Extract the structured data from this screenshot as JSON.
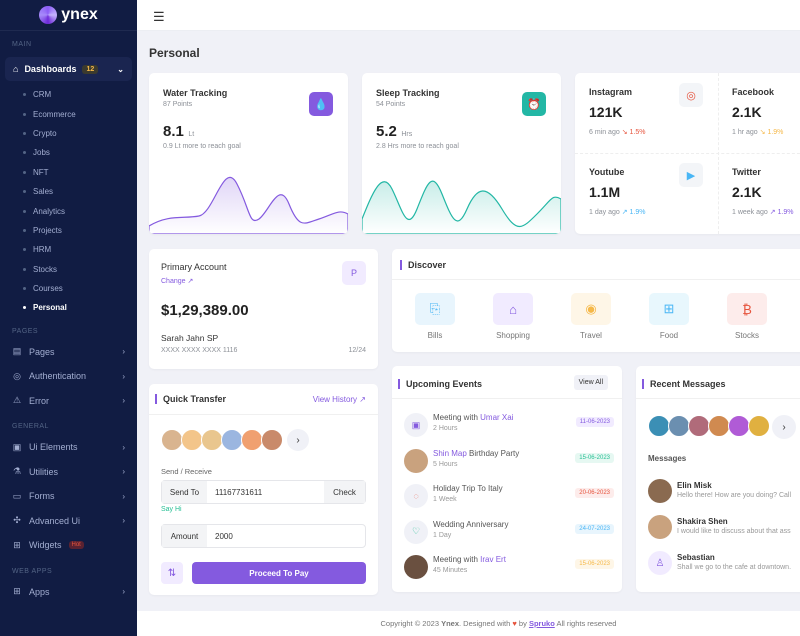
{
  "brand": "ynex",
  "sidebar": {
    "main_label": "MAIN",
    "dashboards": "Dashboards",
    "dash_badge": "12",
    "subitems": [
      "CRM",
      "Ecommerce",
      "Crypto",
      "Jobs",
      "NFT",
      "Sales",
      "Analytics",
      "Projects",
      "HRM",
      "Stocks",
      "Courses",
      "Personal"
    ],
    "pages_label": "PAGES",
    "pages": [
      "Pages",
      "Authentication",
      "Error"
    ],
    "general_label": "GENERAL",
    "general": [
      "Ui Elements",
      "Utilities",
      "Forms",
      "Advanced Ui",
      "Widgets"
    ],
    "hot": "Hot",
    "webapps_label": "WEB APPS",
    "apps": "Apps"
  },
  "page_title": "Personal",
  "water": {
    "title": "Water Tracking",
    "points": "87 Points",
    "value": "8.1",
    "unit": "Lt",
    "note": "0.9 Lt more to reach goal",
    "color": "#845adf"
  },
  "sleep": {
    "title": "Sleep Tracking",
    "points": "54 Points",
    "value": "5.2",
    "unit": "Hrs",
    "note": "2.8 Hrs more to reach goal",
    "color": "#23b7a5"
  },
  "social": [
    {
      "name": "Instagram",
      "value": "121K",
      "time": "6 min ago",
      "change": "↘ 1.5%",
      "color": "#e6533c"
    },
    {
      "name": "Facebook",
      "value": "2.1K",
      "time": "1 hr ago",
      "change": "↘ 1.9%",
      "color": "#f5b849"
    },
    {
      "name": "Youtube",
      "value": "1.1M",
      "time": "1 day ago",
      "change": "↗ 1.9%",
      "color": "#49b6f5"
    },
    {
      "name": "Twitter",
      "value": "2.1K",
      "time": "1 week ago",
      "change": "↗ 1.9%",
      "color": "#845adf"
    }
  ],
  "account": {
    "title": "Primary Account",
    "change": "Change",
    "balance": "$1,29,389.00",
    "name": "Sarah Jahn SP",
    "number": "XXXX XXXX XXXX 1116",
    "expiry": "12/24"
  },
  "discover": {
    "title": "Discover",
    "items": [
      "Bills",
      "Shopping",
      "Travel",
      "Food",
      "Stocks"
    ]
  },
  "transfer": {
    "title": "Quick Transfer",
    "history": "View History",
    "send_receive": "Send / Receive",
    "send_to": "Send To",
    "phone": "11167731611",
    "check": "Check",
    "say_hi": "Say Hi",
    "amount_label": "Amount",
    "amount": "2000",
    "proceed": "Proceed To Pay"
  },
  "events": {
    "title": "Upcoming Events",
    "view_all": "View All",
    "items": [
      {
        "pre": "Meeting with ",
        "hl": "Umar Xai",
        "post": "",
        "sub": "2 Hours",
        "date": "11-06-2023"
      },
      {
        "pre": "",
        "hl": "Shin Map",
        "post": " Birthday Party",
        "sub": "5 Hours",
        "date": "15-06-2023"
      },
      {
        "pre": "Holiday Trip To Italy",
        "hl": "",
        "post": "",
        "sub": "1 Week",
        "date": "20-06-2023"
      },
      {
        "pre": "Wedding Anniversary",
        "hl": "",
        "post": "",
        "sub": "1 Day",
        "date": "24-07-2023"
      },
      {
        "pre": "Meeting with ",
        "hl": "Irav Ert",
        "post": "",
        "sub": "45 Minutes",
        "date": "15-06-2023"
      }
    ]
  },
  "messages": {
    "title": "Recent Messages",
    "label": "Messages",
    "items": [
      {
        "name": "Elin Misk",
        "text": "Hello there! How are you doing? Call"
      },
      {
        "name": "Shakira Shen",
        "text": "I would like to discuss about that ass"
      },
      {
        "name": "Sebastian",
        "text": "Shall we go to the cafe at downtown."
      }
    ]
  },
  "footer": {
    "pre": "Copyright © 2023 ",
    "brand": "Ynex",
    "mid": ". Designed with ",
    "by": " by ",
    "company": "Spruko",
    "post": " All rights reserved"
  }
}
